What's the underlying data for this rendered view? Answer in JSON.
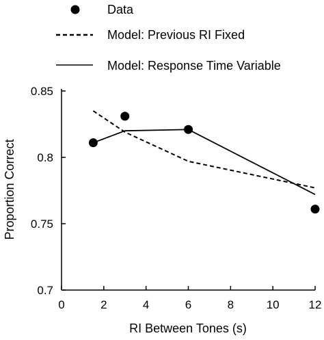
{
  "chart_data": {
    "type": "line",
    "title": "",
    "xlabel": "RI Between Tones (s)",
    "ylabel": "Proportion Correct",
    "xlim": [
      0,
      12
    ],
    "ylim": [
      0.7,
      0.85
    ],
    "xticks": [
      "0",
      "2",
      "4",
      "6",
      "8",
      "10",
      "12"
    ],
    "yticks": [
      "0.7",
      "0.75",
      "0.8",
      "0.85"
    ],
    "grid": false,
    "legend_position": "top",
    "series": [
      {
        "name": "Data",
        "style": "points",
        "x": [
          1.5,
          3,
          6,
          12
        ],
        "y": [
          0.811,
          0.831,
          0.821,
          0.761
        ]
      },
      {
        "name": "Model: Previous RI Fixed",
        "style": "dashed",
        "x": [
          1.5,
          3,
          6,
          12
        ],
        "y": [
          0.835,
          0.819,
          0.797,
          0.777
        ]
      },
      {
        "name": "Model: Response Time Variable",
        "style": "solid",
        "x": [
          1.5,
          3,
          6,
          12
        ],
        "y": [
          0.811,
          0.82,
          0.821,
          0.772
        ]
      }
    ]
  }
}
